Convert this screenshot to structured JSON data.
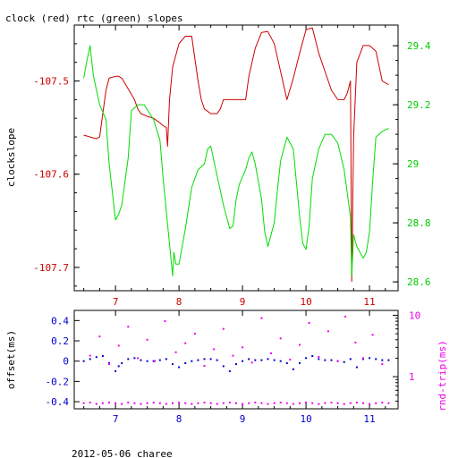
{
  "chart_data": [
    {
      "type": "line",
      "title": "clock (red) rtc (green) slopes",
      "ylabel": "clockslope",
      "x_ticks": [
        "7",
        "8",
        "9",
        "10",
        "11"
      ],
      "xlim": [
        6.35,
        11.45
      ],
      "ylim_left": [
        -107.725,
        -107.44
      ],
      "yticks_left": [
        "-107.5",
        "-107.6",
        "-107.7"
      ],
      "ylim_right": [
        28.57,
        29.47
      ],
      "yticks_right": [
        "28.6",
        "28.8",
        "29",
        "29.2",
        "29.4"
      ],
      "colors": {
        "clock": "#cc0000",
        "rtc": "#00dd00",
        "axis": "#000000"
      },
      "series": [
        {
          "name": "clock (red)",
          "axis": "left",
          "color": "#cc0000",
          "x": [
            6.5,
            6.6,
            6.7,
            6.75,
            6.8,
            6.85,
            6.9,
            7.0,
            7.05,
            7.1,
            7.3,
            7.35,
            7.4,
            7.5,
            7.6,
            7.7,
            7.75,
            7.8,
            7.82,
            7.85,
            7.9,
            8.0,
            8.1,
            8.2,
            8.3,
            8.35,
            8.4,
            8.5,
            8.6,
            8.65,
            8.7,
            8.8,
            8.9,
            9.0,
            9.05,
            9.1,
            9.2,
            9.3,
            9.4,
            9.5,
            9.7,
            9.8,
            9.9,
            10.0,
            10.1,
            10.2,
            10.3,
            10.4,
            10.5,
            10.6,
            10.65,
            10.7,
            10.72,
            10.75,
            10.8,
            10.9,
            11.0,
            11.1,
            11.2,
            11.3
          ],
          "y": [
            -107.558,
            -107.56,
            -107.562,
            -107.56,
            -107.535,
            -107.51,
            -107.497,
            -107.495,
            -107.495,
            -107.497,
            -107.52,
            -107.53,
            -107.535,
            -107.538,
            -107.54,
            -107.545,
            -107.548,
            -107.55,
            -107.57,
            -107.52,
            -107.485,
            -107.46,
            -107.452,
            -107.452,
            -107.5,
            -107.52,
            -107.53,
            -107.535,
            -107.535,
            -107.53,
            -107.52,
            -107.52,
            -107.52,
            -107.52,
            -107.52,
            -107.495,
            -107.465,
            -107.448,
            -107.447,
            -107.46,
            -107.52,
            -107.497,
            -107.47,
            -107.445,
            -107.443,
            -107.47,
            -107.49,
            -107.51,
            -107.52,
            -107.52,
            -107.513,
            -107.5,
            -107.715,
            -107.56,
            -107.48,
            -107.462,
            -107.462,
            -107.468,
            -107.5,
            -107.504
          ]
        },
        {
          "name": "rtc (green)",
          "axis": "right",
          "color": "#00dd00",
          "x": [
            6.5,
            6.55,
            6.6,
            6.65,
            6.75,
            6.85,
            6.9,
            7.0,
            7.05,
            7.1,
            7.2,
            7.25,
            7.35,
            7.45,
            7.6,
            7.7,
            7.75,
            7.8,
            7.9,
            7.92,
            7.95,
            8.0,
            8.1,
            8.2,
            8.3,
            8.4,
            8.45,
            8.5,
            8.6,
            8.7,
            8.8,
            8.85,
            8.9,
            8.95,
            9.05,
            9.1,
            9.15,
            9.2,
            9.3,
            9.35,
            9.4,
            9.5,
            9.55,
            9.6,
            9.7,
            9.8,
            9.9,
            9.95,
            10.0,
            10.05,
            10.1,
            10.2,
            10.3,
            10.4,
            10.5,
            10.6,
            10.7,
            10.72,
            10.75,
            10.8,
            10.9,
            10.95,
            11.0,
            11.05,
            11.1,
            11.2,
            11.3
          ],
          "y": [
            29.29,
            29.35,
            29.4,
            29.3,
            29.2,
            29.15,
            29.0,
            28.81,
            28.83,
            28.86,
            29.02,
            29.18,
            29.2,
            29.2,
            29.15,
            29.08,
            28.95,
            28.84,
            28.62,
            28.7,
            28.66,
            28.66,
            28.78,
            28.92,
            28.98,
            29.0,
            29.05,
            29.06,
            28.96,
            28.86,
            28.78,
            28.79,
            28.88,
            28.93,
            28.98,
            29.02,
            29.04,
            29.0,
            28.88,
            28.77,
            28.72,
            28.8,
            28.91,
            29.01,
            29.09,
            29.05,
            28.82,
            28.73,
            28.71,
            28.79,
            28.95,
            29.05,
            29.1,
            29.1,
            29.07,
            28.98,
            28.82,
            28.62,
            28.76,
            28.72,
            28.68,
            28.7,
            28.77,
            28.94,
            29.09,
            29.11,
            29.12
          ]
        }
      ]
    },
    {
      "type": "scatter",
      "xlabel": "2012-05-06 charee",
      "ylabel_left": "offset(ms)",
      "ylabel_right": "rnd-trip(ms)",
      "x_ticks": [
        "7",
        "8",
        "9",
        "10",
        "11"
      ],
      "xlim": [
        6.35,
        11.45
      ],
      "ylim_left": [
        -0.47,
        0.5
      ],
      "yticks_left": [
        "0.4",
        "0.2",
        "0",
        "-0.2",
        "-0.4"
      ],
      "ylim_right_log": [
        0.3,
        12
      ],
      "yticks_right": [
        "10",
        "1"
      ],
      "colors": {
        "offset": "#0000cc",
        "rndtrip": "#ee00ee"
      },
      "series": [
        {
          "name": "offset(ms)",
          "axis": "left",
          "color": "#0000cc",
          "x": [
            6.5,
            6.6,
            6.7,
            6.8,
            6.9,
            7.0,
            7.05,
            7.1,
            7.2,
            7.3,
            7.4,
            7.5,
            7.6,
            7.7,
            7.8,
            7.9,
            8.0,
            8.1,
            8.2,
            8.3,
            8.4,
            8.5,
            8.6,
            8.7,
            8.8,
            8.9,
            9.0,
            9.1,
            9.2,
            9.3,
            9.4,
            9.5,
            9.6,
            9.7,
            9.8,
            9.9,
            10.0,
            10.1,
            10.2,
            10.3,
            10.4,
            10.5,
            10.6,
            10.7,
            10.8,
            10.9,
            11.0,
            11.1,
            11.2,
            11.3
          ],
          "y": [
            0.0,
            0.02,
            0.04,
            0.05,
            -0.02,
            -0.1,
            -0.05,
            -0.02,
            0.02,
            0.03,
            0.01,
            0.0,
            0.0,
            0.01,
            0.02,
            -0.03,
            -0.06,
            -0.02,
            0.0,
            0.01,
            0.02,
            0.02,
            0.01,
            -0.05,
            -0.1,
            -0.03,
            0.0,
            0.02,
            0.01,
            0.01,
            0.02,
            0.01,
            0.0,
            -0.02,
            -0.08,
            -0.02,
            0.03,
            0.05,
            0.02,
            0.01,
            0.01,
            0.0,
            -0.01,
            0.02,
            -0.06,
            0.02,
            0.03,
            0.02,
            0.01,
            0.01
          ]
        },
        {
          "name": "rnd-trip(ms)",
          "axis": "right",
          "color": "#ee00ee",
          "x": [
            6.5,
            6.6,
            6.7,
            6.8,
            6.9,
            7.0,
            7.1,
            7.2,
            7.3,
            7.4,
            7.5,
            7.6,
            7.7,
            7.8,
            7.9,
            8.0,
            8.1,
            8.2,
            8.3,
            8.4,
            8.5,
            8.6,
            8.7,
            8.8,
            8.9,
            9.0,
            9.1,
            9.2,
            9.3,
            9.4,
            9.5,
            9.6,
            9.7,
            9.8,
            9.9,
            10.0,
            10.1,
            10.2,
            10.3,
            10.4,
            10.5,
            10.6,
            10.7,
            10.8,
            10.9,
            11.0,
            11.1,
            11.2,
            11.3
          ],
          "y": [
            0.37,
            0.38,
            0.36,
            0.37,
            0.38,
            0.37,
            0.36,
            0.38,
            0.37,
            0.36,
            0.37,
            0.38,
            0.37,
            0.36,
            0.37,
            0.38,
            0.37,
            0.36,
            0.37,
            0.38,
            0.37,
            0.36,
            0.37,
            0.38,
            0.37,
            0.36,
            0.37,
            0.38,
            0.37,
            0.36,
            0.37,
            0.38,
            0.37,
            0.36,
            0.37,
            0.38,
            0.37,
            0.36,
            0.37,
            0.38,
            0.37,
            0.36,
            0.37,
            0.38,
            0.37,
            0.36,
            0.37,
            0.38,
            0.37
          ]
        },
        {
          "name": "rnd-trip(ms) outliers",
          "axis": "right",
          "color": "#ee00ee",
          "x": [
            6.6,
            6.75,
            6.9,
            7.05,
            7.2,
            7.35,
            7.5,
            7.62,
            7.78,
            7.95,
            8.1,
            8.25,
            8.4,
            8.55,
            8.7,
            8.85,
            9.0,
            9.15,
            9.3,
            9.45,
            9.6,
            9.75,
            9.9,
            10.05,
            10.2,
            10.35,
            10.5,
            10.62,
            10.78,
            10.9,
            11.05,
            11.2
          ],
          "y": [
            2.2,
            4.5,
            1.6,
            3.2,
            6.5,
            2.0,
            4.0,
            1.8,
            8.0,
            2.5,
            3.5,
            5.0,
            1.5,
            2.8,
            6.0,
            2.2,
            3.0,
            1.7,
            9.0,
            2.4,
            4.2,
            1.9,
            3.3,
            7.5,
            2.1,
            5.5,
            1.8,
            9.5,
            3.6,
            2.0,
            4.8,
            1.6
          ]
        }
      ]
    }
  ]
}
